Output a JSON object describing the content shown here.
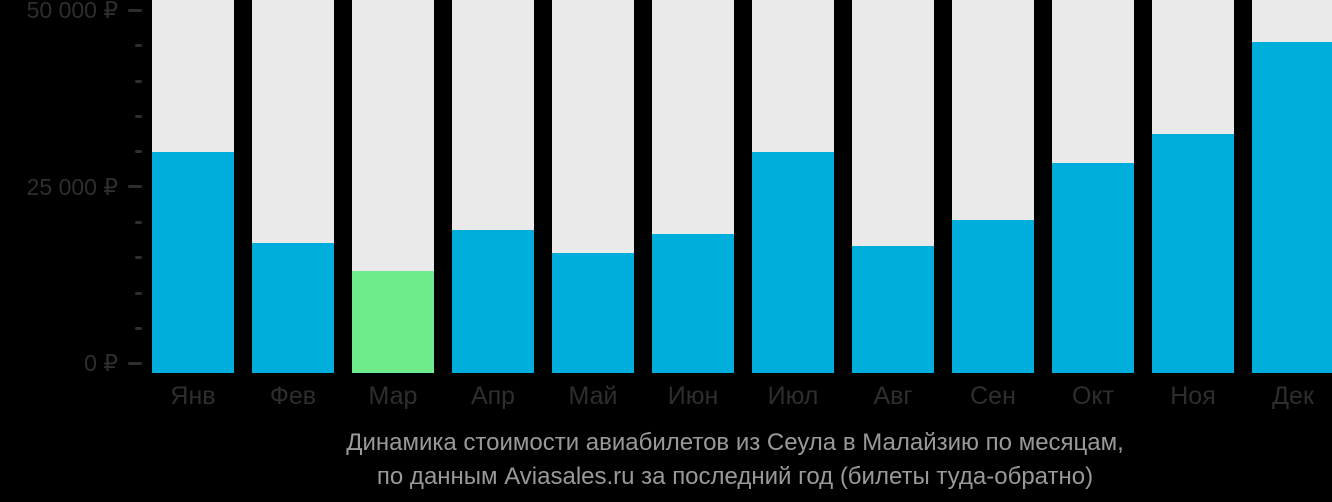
{
  "chart_data": {
    "type": "bar",
    "title": "Динамика стоимости авиабилетов из Сеула в Малайзию по месяцам,",
    "subtitle": "по данным Aviasales.ru за последний год (билеты туда-обратно)",
    "categories": [
      "Янв",
      "Фев",
      "Мар",
      "Апр",
      "Май",
      "Июн",
      "Июл",
      "Авг",
      "Сен",
      "Окт",
      "Ноя",
      "Дек"
    ],
    "values": [
      29800,
      17000,
      13000,
      18900,
      15600,
      18300,
      29900,
      16500,
      20300,
      28300,
      32400,
      45500
    ],
    "unit": "₽",
    "highlight_index": 2,
    "highlight_category": "Мар",
    "ylim": [
      0,
      50000
    ],
    "y_ticks": [
      {
        "value": 50000,
        "label": "50 000 ₽"
      },
      {
        "value": 25000,
        "label": "25 000 ₽"
      },
      {
        "value": 0,
        "label": "0 ₽"
      }
    ],
    "y_minor_tick_step": 5000,
    "grid": false,
    "legend": false,
    "layout": {
      "bar_track_full_height": true,
      "caption_position": "bottom-center"
    },
    "colors": {
      "bar": "#00AEDC",
      "highlight_bar": "#6EEC8C",
      "bar_track": "#EAEAEA",
      "background": "#000000",
      "axis_text": "#2E2E2E",
      "caption_text": "#999999"
    }
  }
}
